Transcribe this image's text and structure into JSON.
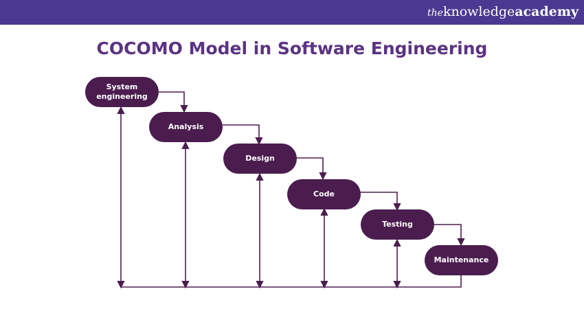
{
  "brand": {
    "prefix": "the",
    "name_regular": "knowledge",
    "name_bold": "academy"
  },
  "title": "COCOMO Model in Software Engineering",
  "nodes": [
    {
      "label": "System engineering"
    },
    {
      "label": "Analysis"
    },
    {
      "label": "Design"
    },
    {
      "label": "Code"
    },
    {
      "label": "Testing"
    },
    {
      "label": "Maintenance"
    }
  ],
  "colors": {
    "header": "#4a3990",
    "title": "#5b3382",
    "node": "#4b1d4f",
    "line": "#4b1d4f"
  }
}
